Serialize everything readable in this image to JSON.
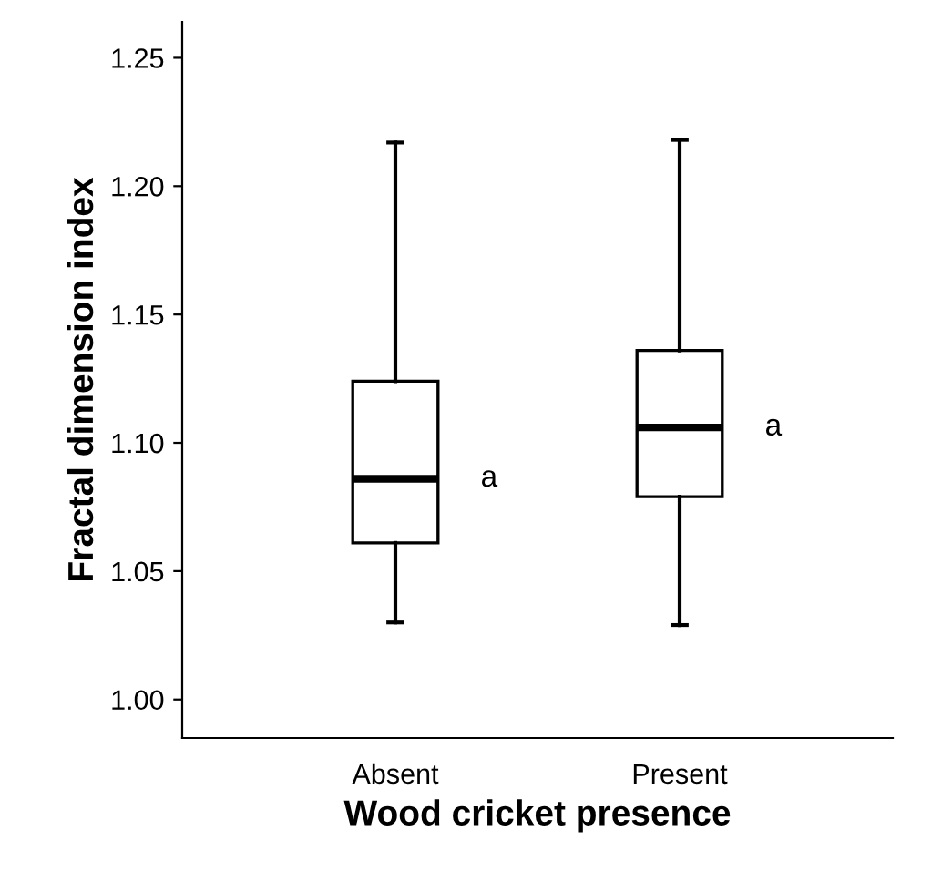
{
  "chart_data": {
    "type": "box",
    "xlabel": "Wood cricket presence",
    "ylabel": "Fractal dimension index",
    "categories": [
      "Absent",
      "Present"
    ],
    "boxes": [
      {
        "low": 1.03,
        "q1": 1.061,
        "median": 1.086,
        "q3": 1.124,
        "high": 1.217
      },
      {
        "low": 1.029,
        "q1": 1.079,
        "median": 1.106,
        "q3": 1.136,
        "high": 1.218
      }
    ],
    "color": "#ffffff",
    "ylim": [
      0.985,
      1.264
    ],
    "yticks": [
      {
        "value": 1.0,
        "label": "1.00"
      },
      {
        "value": 1.05,
        "label": "1.05"
      },
      {
        "value": 1.1,
        "label": "1.10"
      },
      {
        "value": 1.15,
        "label": "1.15"
      },
      {
        "value": 1.2,
        "label": "1.20"
      },
      {
        "value": 1.25,
        "label": "1.25"
      }
    ],
    "annotations": [
      "a",
      "a"
    ],
    "grid": false,
    "legend": false
  }
}
